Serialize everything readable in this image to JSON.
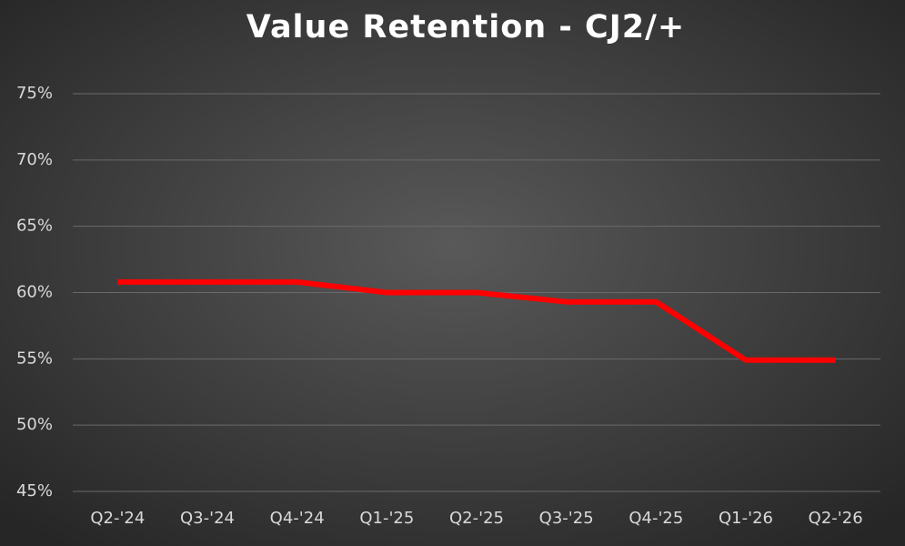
{
  "chart_data": {
    "type": "line",
    "title": "Value Retention - CJ2/+",
    "categories": [
      "Q2-'24",
      "Q3-'24",
      "Q4-'24",
      "Q1-'25",
      "Q2-'25",
      "Q3-'25",
      "Q4-'25",
      "Q1-'26",
      "Q2-'26"
    ],
    "values": [
      60.8,
      60.8,
      60.8,
      60.0,
      60.0,
      59.3,
      59.3,
      54.9,
      54.9
    ],
    "color": "#ff0000",
    "ylim": [
      45,
      75
    ],
    "yticks": [
      {
        "value": 45,
        "label": "45%"
      },
      {
        "value": 50,
        "label": "50%"
      },
      {
        "value": 55,
        "label": "55%"
      },
      {
        "value": 60,
        "label": "60%"
      },
      {
        "value": 65,
        "label": "65%"
      },
      {
        "value": 70,
        "label": "70%"
      },
      {
        "value": 75,
        "label": "75%"
      }
    ],
    "grid": true
  }
}
